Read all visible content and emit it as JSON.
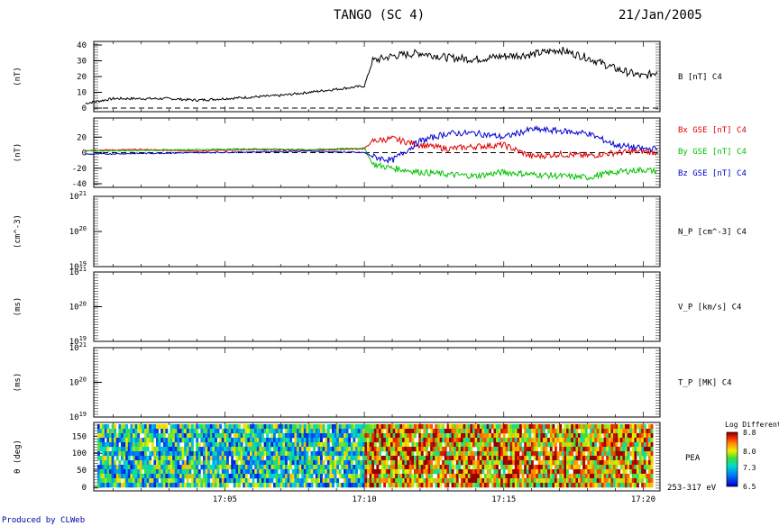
{
  "header": {
    "spacecraft": "TANGO (SC 4)",
    "date": "21/Jan/2005"
  },
  "footer": {
    "produced_by": "Produced by CLWeb"
  },
  "chart_data": [
    {
      "panel": "B",
      "type": "line",
      "ylabel": "(nT)",
      "ylim": [
        0,
        40
      ],
      "yticks": [
        "0",
        "10",
        "20",
        "30",
        "40"
      ],
      "dashed_zero": true,
      "series": [
        {
          "name": "B [nT] C4",
          "color": "#000000",
          "x": [
            "17:00",
            "17:01",
            "17:02",
            "17:03",
            "17:04",
            "17:05",
            "17:06",
            "17:07",
            "17:08",
            "17:09",
            "17:10",
            "17:10.3",
            "17:11",
            "17:12",
            "17:13",
            "17:14",
            "17:15",
            "17:16",
            "17:17",
            "17:18",
            "17:19",
            "17:20",
            "17:20.5"
          ],
          "values": [
            3,
            6,
            6,
            6,
            5,
            6,
            7,
            8,
            10,
            12,
            14,
            30,
            33,
            35,
            32,
            31,
            33,
            34,
            37,
            32,
            25,
            20,
            23
          ]
        }
      ]
    },
    {
      "panel": "B_GSE",
      "type": "line",
      "ylabel": "(nT)",
      "ylim": [
        -40,
        40
      ],
      "yticks": [
        "-40",
        "-20",
        "0",
        "20"
      ],
      "dashed_zero": true,
      "series": [
        {
          "name": "Bx GSE [nT] C4",
          "color": "#e00000",
          "x": [
            "17:00",
            "17:02",
            "17:04",
            "17:06",
            "17:08",
            "17:10",
            "17:10.3",
            "17:11",
            "17:12",
            "17:13",
            "17:14",
            "17:15",
            "17:16",
            "17:17",
            "17:18",
            "17:19",
            "17:20",
            "17:20.5"
          ],
          "values": [
            3,
            4,
            2,
            4,
            3,
            5,
            15,
            18,
            10,
            5,
            8,
            10,
            -5,
            -2,
            -4,
            0,
            2,
            0
          ]
        },
        {
          "name": "By GSE [nT] C4",
          "color": "#00c000",
          "x": [
            "17:00",
            "17:02",
            "17:04",
            "17:06",
            "17:08",
            "17:10",
            "17:10.3",
            "17:11",
            "17:12",
            "17:13",
            "17:14",
            "17:15",
            "17:16",
            "17:17",
            "17:18",
            "17:19",
            "17:20",
            "17:20.5"
          ],
          "values": [
            2,
            3,
            4,
            5,
            4,
            6,
            -15,
            -20,
            -25,
            -28,
            -30,
            -25,
            -28,
            -30,
            -32,
            -25,
            -22,
            -24
          ]
        },
        {
          "name": "Bz GSE [nT] C4",
          "color": "#0000d0",
          "x": [
            "17:00",
            "17:02",
            "17:04",
            "17:06",
            "17:08",
            "17:10",
            "17:10.3",
            "17:11",
            "17:12",
            "17:13",
            "17:14",
            "17:15",
            "17:16",
            "17:17",
            "17:18",
            "17:19",
            "17:20",
            "17:20.5"
          ],
          "values": [
            -2,
            -1,
            0,
            1,
            2,
            0,
            -5,
            -10,
            15,
            25,
            25,
            20,
            30,
            28,
            25,
            10,
            5,
            5
          ]
        }
      ]
    },
    {
      "panel": "N_P",
      "type": "line",
      "ylabel": "(cm^-3)",
      "yscale": "log",
      "yticks": [
        "10^19",
        "10^20",
        "10^21"
      ],
      "series": [
        {
          "name": "N_P [cm^-3] C4",
          "values": []
        }
      ]
    },
    {
      "panel": "V_P",
      "type": "line",
      "ylabel": "(ms)",
      "yscale": "log",
      "yticks": [
        "10^19",
        "10^20",
        "10^21"
      ],
      "series": [
        {
          "name": "V_P [km/s] C4",
          "values": []
        }
      ]
    },
    {
      "panel": "T_P",
      "type": "line",
      "ylabel": "(ms)",
      "yscale": "log",
      "yticks": [
        "10^19",
        "10^20",
        "10^21"
      ],
      "series": [
        {
          "name": "T_P [MK] C4",
          "values": []
        }
      ]
    },
    {
      "panel": "PEA",
      "type": "heatmap",
      "ylabel": "θ (deg)",
      "ylim": [
        0,
        180
      ],
      "yticks": [
        "0",
        "50",
        "100",
        "150"
      ],
      "xlabel_ticks": [
        "17:05",
        "17:10",
        "17:15",
        "17:20"
      ],
      "label": "PEA",
      "energy": "253-317 eV",
      "colorbar": {
        "title": "Log Differential",
        "ticks": [
          "6.5",
          "7.3",
          "8.0",
          "8.8"
        ],
        "range": [
          6.5,
          8.8
        ]
      },
      "time_segments": [
        {
          "from": "17:00",
          "to": "17:10",
          "mean": 7.4
        },
        {
          "from": "17:10",
          "to": "17:12.5",
          "mean": 8.3
        },
        {
          "from": "17:12.5",
          "to": "17:20.5",
          "mean": 8.2
        }
      ]
    }
  ]
}
